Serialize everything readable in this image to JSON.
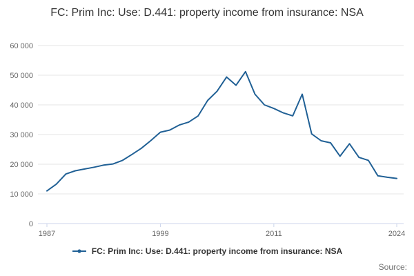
{
  "title": "FC: Prim Inc: Use: D.441: property income from insurance: NSA",
  "legend": {
    "label": "FC: Prim Inc: Use: D.441: property income from insurance: NSA"
  },
  "source_label": "Source:",
  "colors": {
    "line": "#206095",
    "grid_line": "#e6e6e6",
    "axis_line": "#ccd6eb",
    "axis_label": "#666666",
    "title_text": "#333333"
  },
  "chart_data": {
    "type": "line",
    "title": "FC: Prim Inc: Use: D.441: property income from insurance: NSA",
    "xlabel": "",
    "ylabel": "",
    "ylim": [
      0,
      60000
    ],
    "grid": "horizontal",
    "legend_position": "bottom",
    "x": [
      1987,
      1988,
      1989,
      1990,
      1991,
      1992,
      1993,
      1994,
      1995,
      1996,
      1997,
      1998,
      1999,
      2000,
      2001,
      2002,
      2003,
      2004,
      2005,
      2006,
      2007,
      2008,
      2009,
      2010,
      2011,
      2012,
      2013,
      2014,
      2015,
      2016,
      2017,
      2018,
      2019,
      2020,
      2021,
      2022,
      2023,
      2024
    ],
    "series": [
      {
        "name": "FC: Prim Inc: Use: D.441: property income from insurance: NSA",
        "values": [
          11000,
          13300,
          16700,
          17800,
          18400,
          19000,
          19700,
          20100,
          21300,
          23300,
          25400,
          28000,
          30800,
          31500,
          33200,
          34200,
          36300,
          41500,
          44600,
          49400,
          46600,
          51200,
          43600,
          40000,
          38800,
          37300,
          36300,
          43600,
          30200,
          27900,
          27200,
          22700,
          26900,
          22300,
          21300,
          16100,
          15600,
          15200
        ]
      }
    ],
    "yticks": [
      0,
      10000,
      20000,
      30000,
      40000,
      50000,
      60000
    ],
    "ytick_labels": [
      "0",
      "10 000",
      "20 000",
      "30 000",
      "40 000",
      "50 000",
      "60 000"
    ],
    "xticks": [
      1987,
      1999,
      2011,
      2024
    ],
    "xtick_labels": [
      "1987",
      "1999",
      "2011",
      "2024"
    ]
  }
}
